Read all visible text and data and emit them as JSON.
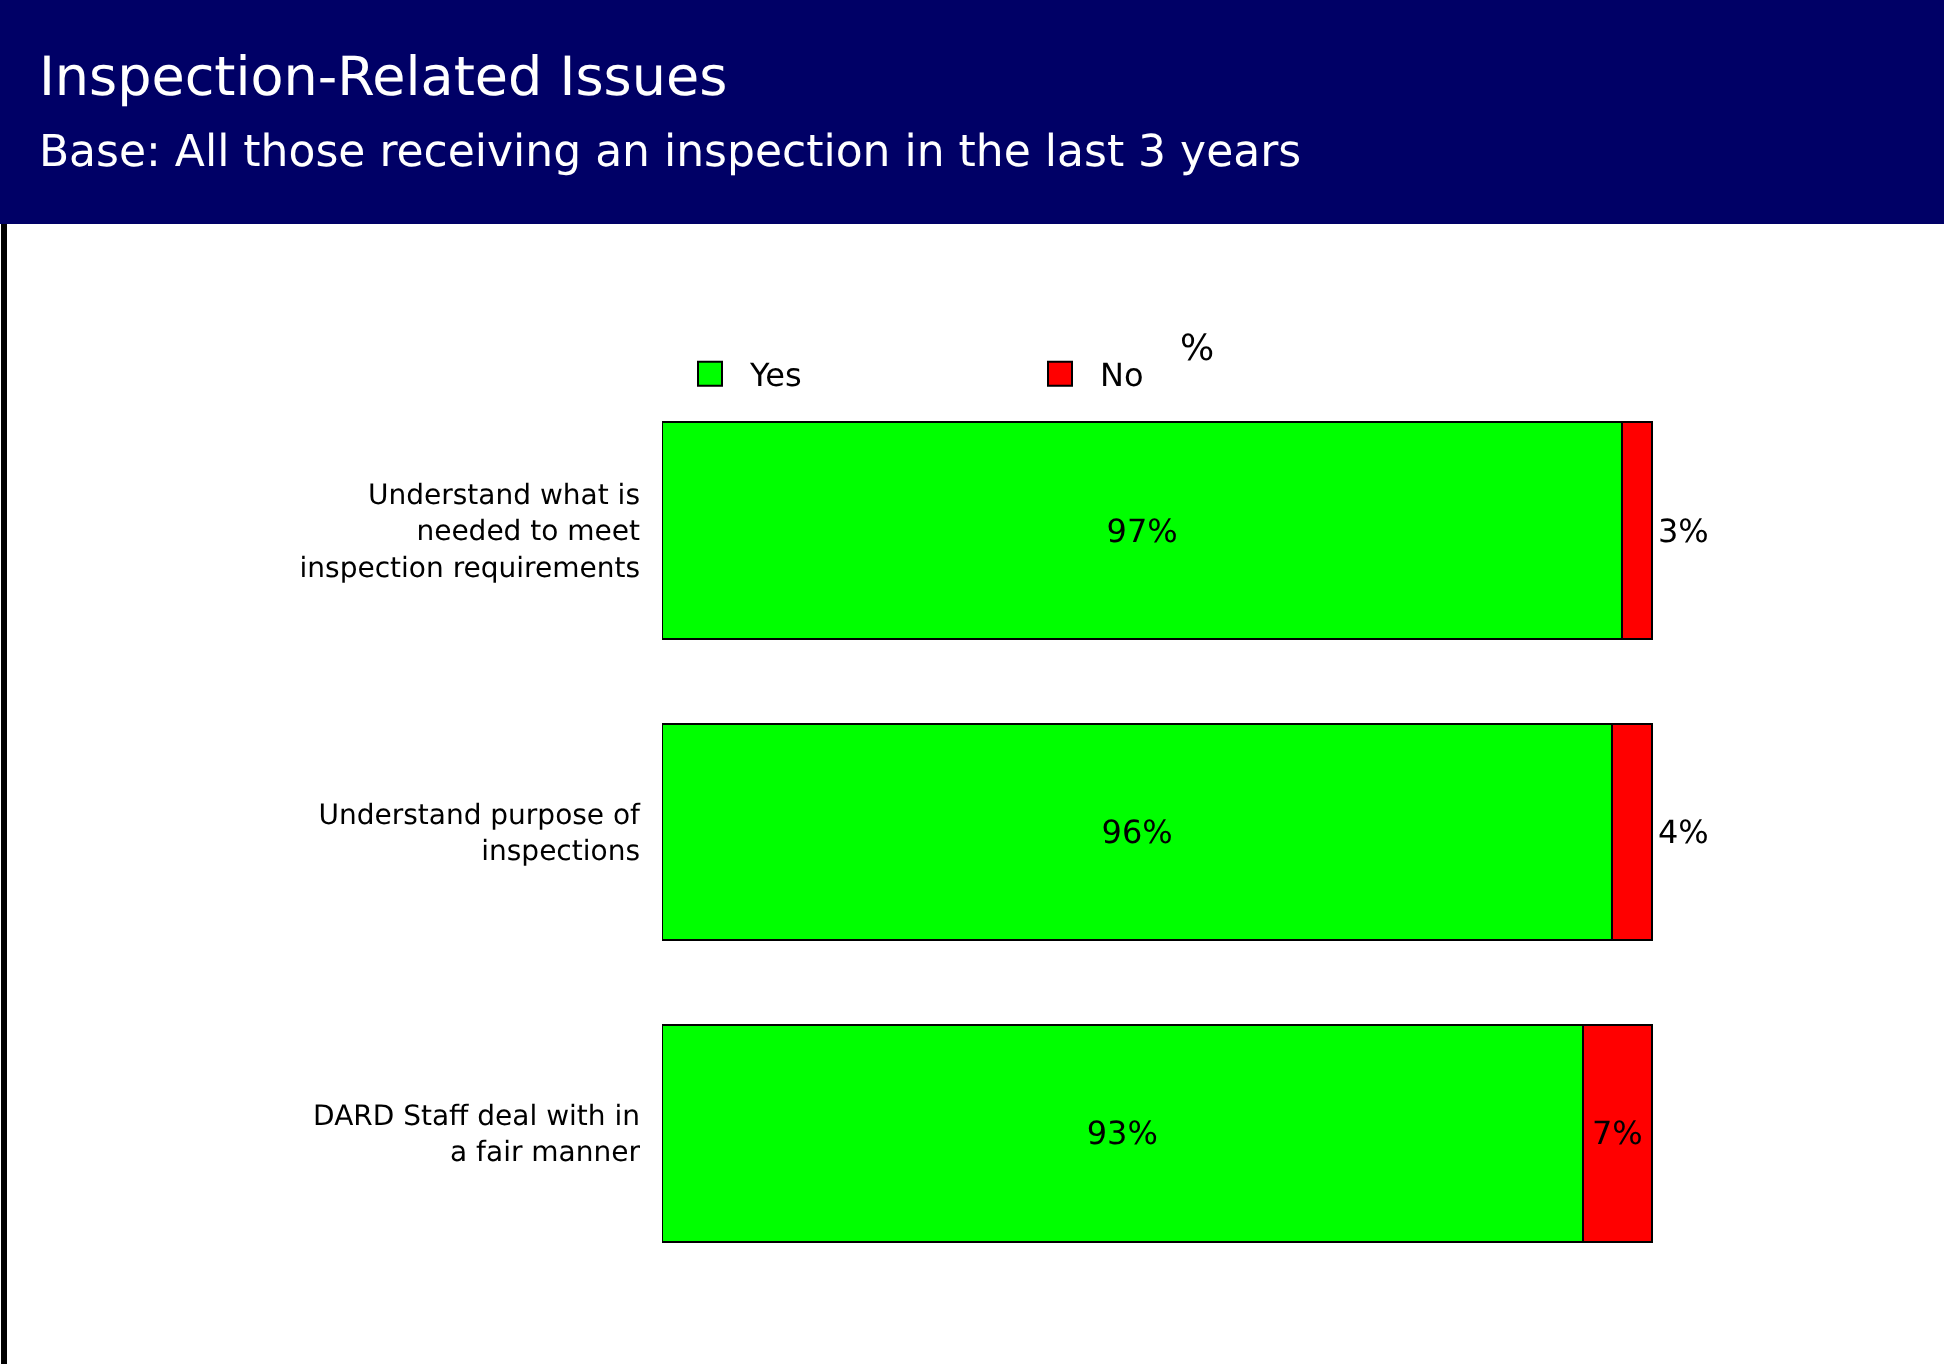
{
  "chart_data": {
    "type": "bar",
    "orientation": "horizontal",
    "stacked": true,
    "title": "Inspection-Related Issues",
    "subtitle": "Base: All those receiving an inspection in the last 3 years",
    "categories": [
      "Understand what is needed to meet inspection requirements",
      "Understand purpose of inspections",
      "DARD Staff deal with in a fair manner"
    ],
    "series": [
      {
        "name": "Yes",
        "color": "#00ff00",
        "values": [
          97,
          96,
          93
        ],
        "value_labels": [
          "97%",
          "96%",
          "93%"
        ]
      },
      {
        "name": "No",
        "color": "#ff0000",
        "values": [
          3,
          4,
          7
        ],
        "value_labels": [
          "3%",
          "4%",
          "7%"
        ]
      }
    ],
    "tick_labels": "y",
    "legend": "top left",
    "annotations": [
      "%"
    ]
  }
}
